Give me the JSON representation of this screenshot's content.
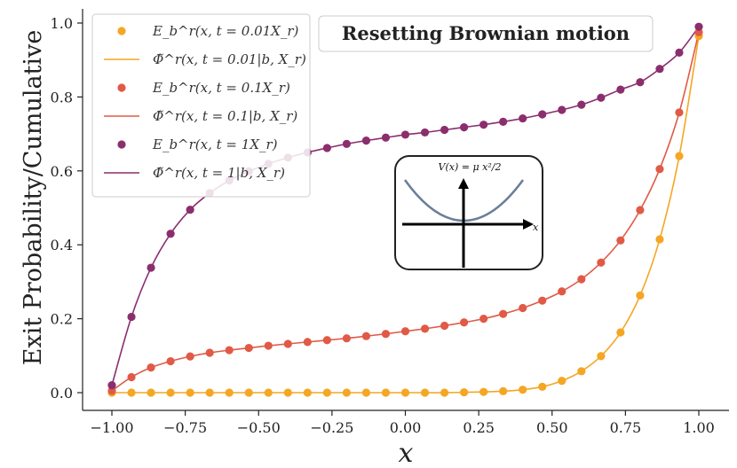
{
  "chart_data": {
    "type": "line",
    "title": "Resetting Brownian motion",
    "xlabel": "x",
    "ylabel": "Exit Probability/Cumulative",
    "xlim": [
      -1.1,
      1.1
    ],
    "ylim": [
      -0.05,
      1.03
    ],
    "x_ticks": [
      -1.0,
      -0.75,
      -0.5,
      -0.25,
      0.0,
      0.25,
      0.5,
      0.75,
      1.0
    ],
    "x_tick_labels": [
      "−1.00",
      "−0.75",
      "−0.50",
      "−0.25",
      "0.00",
      "0.25",
      "0.50",
      "0.75",
      "1.00"
    ],
    "y_ticks": [
      0.0,
      0.2,
      0.4,
      0.6,
      0.8,
      1.0
    ],
    "y_tick_labels": [
      "0.0",
      "0.2",
      "0.4",
      "0.6",
      "0.8",
      "1.0"
    ],
    "grid": false,
    "legend_position": "top-left",
    "x": [
      -1.0,
      -0.9333,
      -0.8667,
      -0.8,
      -0.7333,
      -0.6667,
      -0.6,
      -0.5333,
      -0.4667,
      -0.4,
      -0.3333,
      -0.2667,
      -0.2,
      -0.1333,
      -0.0667,
      0.0,
      0.0667,
      0.1333,
      0.2,
      0.2667,
      0.3333,
      0.4,
      0.4667,
      0.5333,
      0.6,
      0.6667,
      0.7333,
      0.8,
      0.8667,
      0.9333,
      1.0
    ],
    "series": [
      {
        "name": "t = 0.01 X_r",
        "color": "#f5a623",
        "points_label": "E_b^r(x, t = 0.01X_r)",
        "line_label": "Φ̃^r(x, t = 0.01|b, X_r)",
        "values": [
          0.0,
          0.0,
          0.0,
          0.0,
          0.0,
          0.0,
          0.0,
          0.0,
          0.0,
          0.0,
          0.0,
          0.0,
          0.0,
          0.0,
          0.0,
          0.0,
          0.0,
          0.0,
          0.001,
          0.002,
          0.004,
          0.008,
          0.016,
          0.032,
          0.058,
          0.099,
          0.163,
          0.263,
          0.415,
          0.64,
          0.965
        ]
      },
      {
        "name": "t = 0.1 X_r",
        "color": "#e05a47",
        "points_label": "E_b^r(x, t = 0.1X_r)",
        "line_label": "Φ̃^r(x, t = 0.1|b, X_r)",
        "values": [
          0.005,
          0.042,
          0.068,
          0.085,
          0.098,
          0.108,
          0.115,
          0.121,
          0.127,
          0.132,
          0.137,
          0.142,
          0.147,
          0.153,
          0.159,
          0.166,
          0.173,
          0.181,
          0.19,
          0.2,
          0.213,
          0.229,
          0.249,
          0.274,
          0.307,
          0.352,
          0.412,
          0.494,
          0.605,
          0.758,
          0.975
        ]
      },
      {
        "name": "t = 1 X_r",
        "color": "#8b2e6e",
        "points_label": "E_b^r(x, t = 1X_r)",
        "line_label": "Φ̃^r(x, t = 1|b, X_r)",
        "values": [
          0.02,
          0.205,
          0.338,
          0.43,
          0.495,
          0.54,
          0.574,
          0.599,
          0.619,
          0.636,
          0.65,
          0.662,
          0.673,
          0.682,
          0.69,
          0.698,
          0.704,
          0.711,
          0.718,
          0.725,
          0.733,
          0.742,
          0.753,
          0.765,
          0.779,
          0.798,
          0.82,
          0.84,
          0.876,
          0.92,
          0.99
        ]
      }
    ],
    "inset": {
      "title": "V(x) = μ x²/2",
      "axis_label": "x",
      "curve_color": "#6b7f99"
    }
  }
}
